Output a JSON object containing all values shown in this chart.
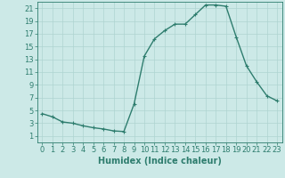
{
  "x": [
    0,
    1,
    2,
    3,
    4,
    5,
    6,
    7,
    8,
    9,
    10,
    11,
    12,
    13,
    14,
    15,
    16,
    17,
    18,
    19,
    20,
    21,
    22,
    23
  ],
  "y": [
    4.5,
    4.0,
    3.2,
    3.0,
    2.6,
    2.3,
    2.1,
    1.8,
    1.7,
    6.0,
    13.5,
    16.2,
    17.5,
    18.5,
    18.5,
    20.0,
    21.5,
    21.5,
    21.3,
    16.5,
    12.0,
    9.5,
    7.3,
    6.5
  ],
  "line_color": "#2e7d6e",
  "marker": "+",
  "marker_color": "#2e7d6e",
  "bg_color": "#cce9e7",
  "grid_color": "#aed4d1",
  "xlabel": "Humidex (Indice chaleur)",
  "xlim": [
    -0.5,
    23.5
  ],
  "ylim": [
    0,
    22
  ],
  "yticks": [
    1,
    3,
    5,
    7,
    9,
    11,
    13,
    15,
    17,
    19,
    21
  ],
  "xticks": [
    0,
    1,
    2,
    3,
    4,
    5,
    6,
    7,
    8,
    9,
    10,
    11,
    12,
    13,
    14,
    15,
    16,
    17,
    18,
    19,
    20,
    21,
    22,
    23
  ],
  "tick_color": "#2e7d6e",
  "label_color": "#2e7d6e",
  "axis_color": "#2e7d6e",
  "xlabel_fontsize": 7,
  "tick_fontsize": 6,
  "linewidth": 1.0,
  "markersize": 3
}
